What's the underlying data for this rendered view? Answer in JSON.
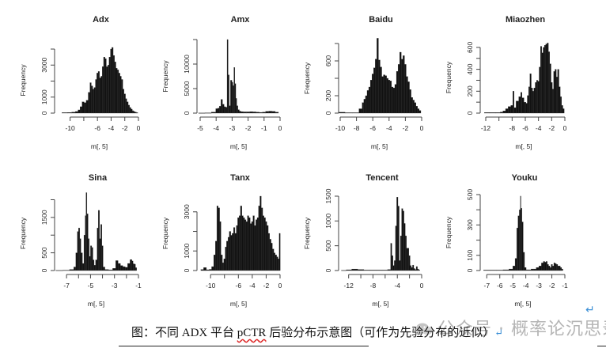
{
  "caption": {
    "prefix": "图：不同 ADX 平台 ",
    "pctr": "pCTR",
    "suffix": " 后验分布示意图（可作为先验分布的近似）",
    "return_mark": "↵"
  },
  "watermark": {
    "text": "公众号 · 概率论沉思录",
    "icon": "wechat-icon"
  },
  "trailing_return_mark": "↵",
  "colors": {
    "bar": "#111111",
    "axis": "#444444",
    "text": "#222222",
    "watermark": "#b5b5b5",
    "return_mark": "#3b8fd6"
  },
  "chart_data": [
    {
      "type": "bar",
      "title": "Adx",
      "xlabel": "m[, 5]",
      "ylabel": "Frequency",
      "xlim": [
        -11,
        0
      ],
      "ylim": [
        0,
        4100
      ],
      "xticks": [
        -10,
        -6,
        -4,
        -2,
        0
      ],
      "xtick_minor": [
        -8
      ],
      "yticks": [
        0,
        1000,
        3000
      ],
      "ytick_minor": [
        2000,
        4000
      ],
      "x": [
        -10.8,
        -10,
        -9.5,
        -9,
        -8.7,
        -8.4,
        -8.1,
        -7.8,
        -7.5,
        -7.2,
        -7.0,
        -6.8,
        -6.6,
        -6.4,
        -6.2,
        -6.0,
        -5.8,
        -5.6,
        -5.4,
        -5.2,
        -5.0,
        -4.8,
        -4.6,
        -4.4,
        -4.2,
        -4.0,
        -3.8,
        -3.6,
        -3.4,
        -3.2,
        -3.0,
        -2.8,
        -2.6,
        -2.4,
        -2.2,
        -2.0,
        -1.8,
        -1.6,
        -1.4,
        -1.2,
        -1.0,
        -0.8,
        -0.6,
        -0.4,
        -0.2
      ],
      "values": [
        30,
        40,
        60,
        100,
        200,
        400,
        700,
        650,
        800,
        1300,
        1900,
        1700,
        1500,
        1600,
        2100,
        2500,
        2600,
        2200,
        2300,
        2900,
        3500,
        3400,
        2900,
        3000,
        3500,
        4000,
        4100,
        3600,
        3200,
        2800,
        2700,
        2500,
        2300,
        2100,
        1500,
        1200,
        900,
        700,
        500,
        350,
        250,
        150,
        100,
        60,
        30
      ]
    },
    {
      "type": "bar",
      "title": "Amx",
      "xlabel": "m[, 5]",
      "ylabel": "Frequency",
      "xlim": [
        -5,
        0
      ],
      "ylim": [
        0,
        15000
      ],
      "xticks": [
        -5,
        -4,
        -3,
        -2,
        -1,
        0
      ],
      "yticks": [
        0,
        5000,
        10000
      ],
      "ytick_minor": [
        15000
      ],
      "x": [
        -4.9,
        -4.5,
        -4.1,
        -3.95,
        -3.85,
        -3.75,
        -3.65,
        -3.55,
        -3.45,
        -3.35,
        -3.28,
        -3.22,
        -3.15,
        -3.05,
        -2.98,
        -2.92,
        -2.86,
        -2.8,
        -2.74,
        -2.68,
        -2.6,
        -2.5,
        -2.4,
        -2.2,
        -2.0,
        -1.8,
        -1.6,
        -1.4,
        -1.2,
        -1.0,
        -0.8,
        -0.6,
        -0.4,
        -0.2
      ],
      "values": [
        30,
        60,
        200,
        900,
        1000,
        1400,
        2800,
        1800,
        1300,
        1200,
        15000,
        7800,
        1500,
        6700,
        6300,
        5600,
        9300,
        6000,
        3000,
        1500,
        700,
        400,
        300,
        250,
        250,
        300,
        250,
        200,
        150,
        200,
        350,
        400,
        350,
        200
      ]
    },
    {
      "type": "bar",
      "title": "Baidu",
      "xlabel": "m[, 5]",
      "ylabel": "Frequency",
      "xlim": [
        -10,
        0
      ],
      "ylim": [
        0,
        800
      ],
      "xticks": [
        -10,
        -8,
        -6,
        -4,
        -2,
        0
      ],
      "yticks": [
        0,
        200,
        600
      ],
      "ytick_minor": [
        400,
        800
      ],
      "x": [
        -9.8,
        -9,
        -8,
        -7.4,
        -7.2,
        -7.0,
        -6.8,
        -6.6,
        -6.4,
        -6.2,
        -6.0,
        -5.8,
        -5.6,
        -5.4,
        -5.2,
        -5.0,
        -4.8,
        -4.6,
        -4.4,
        -4.2,
        -4.0,
        -3.8,
        -3.6,
        -3.4,
        -3.2,
        -3.0,
        -2.8,
        -2.6,
        -2.4,
        -2.2,
        -2.0,
        -1.8,
        -1.6,
        -1.4,
        -1.2,
        -1.0,
        -0.8,
        -0.6,
        -0.4,
        -0.2
      ],
      "values": [
        10,
        5,
        5,
        50,
        120,
        160,
        200,
        260,
        300,
        380,
        450,
        520,
        620,
        860,
        610,
        530,
        420,
        440,
        430,
        400,
        380,
        370,
        300,
        290,
        330,
        480,
        560,
        700,
        620,
        660,
        560,
        420,
        360,
        270,
        180,
        150,
        120,
        80,
        50,
        30
      ]
    },
    {
      "type": "bar",
      "title": "Miaozhen",
      "xlabel": "m[, 5]",
      "ylabel": "Frequency",
      "xlim": [
        -12,
        0
      ],
      "ylim": [
        0,
        650
      ],
      "xticks": [
        -12,
        -8,
        -6,
        -4,
        -2,
        0
      ],
      "xtick_minor": [
        -10
      ],
      "yticks": [
        0,
        200,
        400,
        600
      ],
      "ytick_minor": [
        100,
        300,
        500
      ],
      "x": [
        -11.8,
        -11,
        -10,
        -9.6,
        -9.2,
        -8.8,
        -8.4,
        -8.0,
        -7.8,
        -7.6,
        -7.2,
        -6.8,
        -6.6,
        -6.4,
        -6.0,
        -5.8,
        -5.6,
        -5.4,
        -5.2,
        -5.0,
        -4.8,
        -4.6,
        -4.4,
        -4.2,
        -4.0,
        -3.8,
        -3.6,
        -3.4,
        -3.2,
        -3.0,
        -2.8,
        -2.6,
        -2.4,
        -2.2,
        -2.0,
        -1.8,
        -1.6,
        -1.4,
        -1.2,
        -1.0,
        -0.8,
        -0.6,
        -0.4,
        -0.2
      ],
      "values": [
        5,
        5,
        5,
        10,
        20,
        40,
        60,
        70,
        200,
        50,
        110,
        150,
        190,
        140,
        100,
        90,
        160,
        240,
        360,
        230,
        200,
        230,
        280,
        300,
        290,
        420,
        610,
        550,
        600,
        620,
        630,
        640,
        560,
        450,
        280,
        220,
        380,
        400,
        330,
        400,
        240,
        150,
        70,
        40
      ]
    },
    {
      "type": "bar",
      "title": "Sina",
      "xlabel": "m[, 5]",
      "ylabel": "Frequency",
      "xlim": [
        -7.8,
        -1
      ],
      "ylim": [
        0,
        2100
      ],
      "xticks": [
        -7,
        -5,
        -3,
        -1
      ],
      "xtick_minor": [
        -6,
        -4,
        -2
      ],
      "yticks": [
        0,
        500,
        1500
      ],
      "ytick_minor": [
        1000,
        2000
      ],
      "x": [
        -7.6,
        -7.0,
        -6.5,
        -6.3,
        -6.15,
        -6.05,
        -5.95,
        -5.85,
        -5.75,
        -5.6,
        -5.5,
        -5.4,
        -5.35,
        -5.25,
        -5.15,
        -5.05,
        -4.95,
        -4.85,
        -4.75,
        -4.65,
        -4.5,
        -4.4,
        -4.3,
        -4.2,
        -4.1,
        -4.0,
        -3.9,
        -3.7,
        -3.3,
        -3.0,
        -2.8,
        -2.6,
        -2.4,
        -2.2,
        -2.0,
        -1.8,
        -1.6,
        -1.5,
        -1.4,
        -1.3,
        -1.2
      ],
      "values": [
        5,
        10,
        30,
        100,
        500,
        1100,
        1200,
        900,
        500,
        200,
        1000,
        1550,
        2200,
        1600,
        900,
        400,
        700,
        650,
        300,
        150,
        300,
        1200,
        1700,
        900,
        1300,
        700,
        100,
        30,
        20,
        60,
        280,
        200,
        140,
        110,
        90,
        200,
        310,
        270,
        190,
        180,
        80
      ]
    },
    {
      "type": "bar",
      "title": "Tanx",
      "xlabel": "m[, 5]",
      "ylabel": "Frequency",
      "xlim": [
        -11.5,
        0
      ],
      "ylim": [
        0,
        3800
      ],
      "xticks": [
        -10,
        -6,
        -4,
        -2,
        0
      ],
      "xtick_minor": [
        -8
      ],
      "yticks": [
        0,
        1000,
        3000
      ],
      "ytick_minor": [
        2000
      ],
      "x": [
        -11.2,
        -10.8,
        -10.4,
        -10.0,
        -9.7,
        -9.4,
        -9.2,
        -9.0,
        -8.8,
        -8.6,
        -8.4,
        -8.2,
        -8.0,
        -7.8,
        -7.6,
        -7.4,
        -7.2,
        -7.0,
        -6.8,
        -6.6,
        -6.4,
        -6.2,
        -6.0,
        -5.8,
        -5.6,
        -5.4,
        -5.2,
        -5.0,
        -4.8,
        -4.6,
        -4.4,
        -4.2,
        -4.0,
        -3.8,
        -3.6,
        -3.4,
        -3.2,
        -3.0,
        -2.8,
        -2.6,
        -2.4,
        -2.2,
        -2.0,
        -1.8,
        -1.6,
        -1.4,
        -1.2,
        -1.0,
        -0.8,
        -0.6,
        -0.4,
        -0.2,
        -0.05
      ],
      "values": [
        50,
        150,
        40,
        60,
        200,
        800,
        1500,
        3300,
        3200,
        2500,
        800,
        400,
        600,
        1200,
        1500,
        1700,
        2000,
        1800,
        1900,
        2200,
        1900,
        2300,
        2700,
        2800,
        3300,
        2800,
        2700,
        2600,
        2500,
        2800,
        2700,
        2400,
        2500,
        2800,
        2300,
        2600,
        2700,
        3300,
        3800,
        3200,
        2800,
        2700,
        2500,
        2300,
        1900,
        1600,
        1400,
        1100,
        900,
        800,
        700,
        600,
        1900
      ]
    },
    {
      "type": "bar",
      "title": "Tencent",
      "xlabel": "m[, 5]",
      "ylabel": "Frequency",
      "xlim": [
        -13,
        0
      ],
      "ylim": [
        0,
        1500
      ],
      "xticks": [
        -12,
        -8,
        -4,
        0
      ],
      "xtick_minor": [
        -10,
        -6,
        -2
      ],
      "yticks": [
        0,
        500,
        1000,
        1500
      ],
      "x": [
        -12.8,
        -12,
        -11,
        -10,
        -9,
        -8,
        -7,
        -6,
        -5.2,
        -5.0,
        -4.8,
        -4.6,
        -4.4,
        -4.2,
        -4.0,
        -3.8,
        -3.6,
        -3.4,
        -3.2,
        -3.0,
        -2.8,
        -2.6,
        -2.4,
        -2.2,
        -2.0,
        -1.8,
        -1.6,
        -1.4,
        -1.2,
        -1.0,
        -0.8,
        -0.6,
        -0.4
      ],
      "values": [
        5,
        15,
        30,
        20,
        10,
        10,
        10,
        10,
        20,
        550,
        300,
        100,
        200,
        900,
        1480,
        1300,
        200,
        700,
        1250,
        1200,
        950,
        700,
        450,
        450,
        300,
        100,
        60,
        110,
        40,
        20,
        80,
        30,
        10
      ]
    },
    {
      "type": "bar",
      "title": "Youku",
      "xlabel": "m[, 5]",
      "ylabel": "Frequency",
      "xlim": [
        -7.2,
        -1
      ],
      "ylim": [
        0,
        500
      ],
      "xticks": [
        -7,
        -6,
        -5,
        -4,
        -3,
        -2,
        -1
      ],
      "yticks": [
        0,
        100,
        300,
        500
      ],
      "ytick_minor": [
        200,
        400
      ],
      "x": [
        -7.0,
        -6.5,
        -6.0,
        -5.5,
        -5.1,
        -4.9,
        -4.75,
        -4.65,
        -4.55,
        -4.45,
        -4.4,
        -4.35,
        -4.25,
        -4.15,
        -4.05,
        -3.9,
        -3.7,
        -3.5,
        -3.3,
        -3.1,
        -2.9,
        -2.7,
        -2.6,
        -2.5,
        -2.4,
        -2.3,
        -2.2,
        -2.1,
        -2.0,
        -1.9,
        -1.8,
        -1.7,
        -1.6,
        -1.5,
        -1.4,
        -1.3,
        -1.2
      ],
      "values": [
        3,
        3,
        3,
        5,
        10,
        30,
        80,
        280,
        360,
        400,
        490,
        410,
        320,
        120,
        20,
        5,
        5,
        10,
        10,
        20,
        30,
        50,
        60,
        55,
        60,
        40,
        30,
        20,
        40,
        30,
        50,
        45,
        40,
        30,
        30,
        20,
        10
      ]
    }
  ]
}
